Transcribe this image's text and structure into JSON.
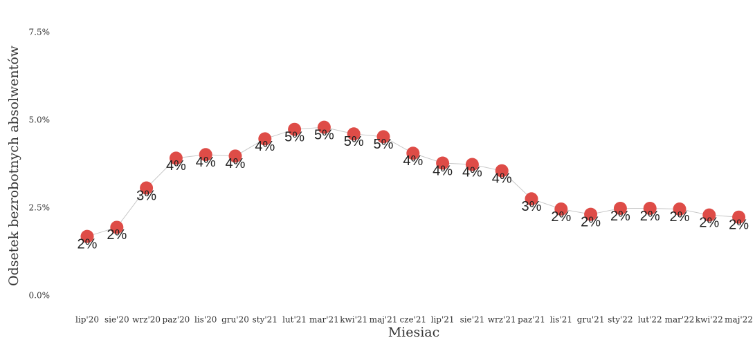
{
  "chart_data": {
    "type": "line",
    "x_label": "Miesiac",
    "y_label": "Odsetek bezrobotnych absolwentów",
    "categories": [
      "lip'20",
      "sie'20",
      "wrz'20",
      "paz'20",
      "lis'20",
      "gru'20",
      "sty'21",
      "lut'21",
      "mar'21",
      "kwi'21",
      "maj'21",
      "cze'21",
      "lip'21",
      "sie'21",
      "wrz'21",
      "paz'21",
      "lis'21",
      "gru'21",
      "sty'22",
      "lut'22",
      "mar'22",
      "kwi'22",
      "maj'22"
    ],
    "values": [
      1.69,
      1.95,
      3.07,
      3.92,
      4.02,
      3.98,
      4.47,
      4.74,
      4.8,
      4.61,
      4.53,
      4.06,
      3.78,
      3.74,
      3.56,
      2.76,
      2.47,
      2.32,
      2.49,
      2.49,
      2.47,
      2.3,
      2.24
    ],
    "value_labels": [
      "2%",
      "2%",
      "3%",
      "4%",
      "4%",
      "4%",
      "4%",
      "5%",
      "5%",
      "5%",
      "5%",
      "4%",
      "4%",
      "4%",
      "4%",
      "3%",
      "2%",
      "2%",
      "2%",
      "2%",
      "2%",
      "2%",
      "2%"
    ],
    "color": "#de4c47",
    "line_color": "#c8c8c8",
    "ylim": [
      0,
      7.5
    ],
    "yticks": [
      {
        "value": 0,
        "label": "0.0%"
      },
      {
        "value": 2.5,
        "label": "2.5%"
      },
      {
        "value": 5,
        "label": "5.0%"
      },
      {
        "value": 7.5,
        "label": "7.5%"
      }
    ],
    "grid": false
  }
}
